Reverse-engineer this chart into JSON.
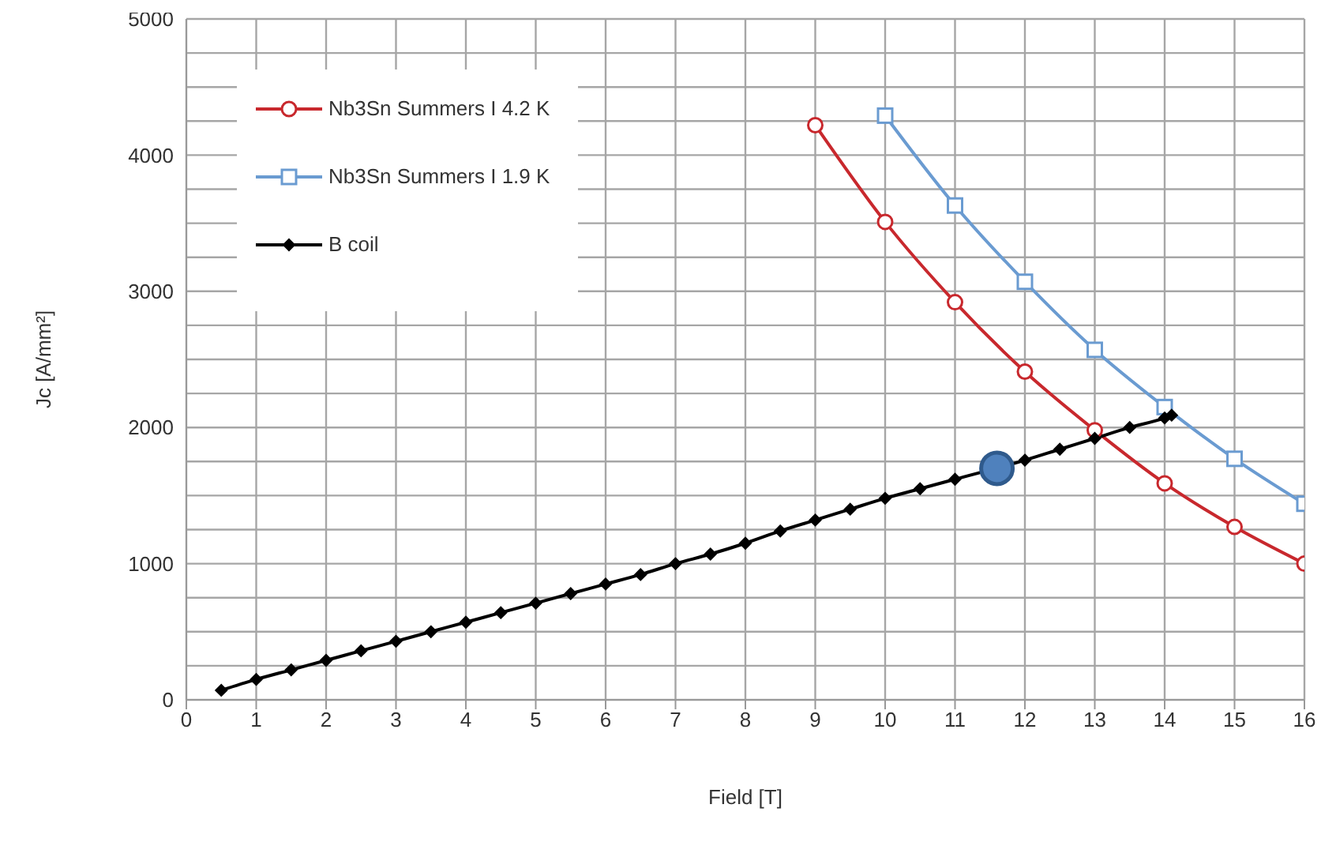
{
  "chart_data": {
    "type": "line",
    "xlabel": "Field [T]",
    "ylabel": "Jc [A/mm²]",
    "xlim": [
      0,
      16
    ],
    "xticks": [
      0,
      1,
      2,
      3,
      4,
      5,
      6,
      7,
      8,
      9,
      10,
      11,
      12,
      13,
      14,
      15,
      16
    ],
    "ylim": [
      0,
      5000
    ],
    "yticks": [
      0,
      {
        "value": 250,
        "label": null
      },
      {
        "value": 500,
        "label": null
      },
      {
        "value": 750,
        "label": null
      },
      1000,
      {
        "value": 1250,
        "label": null
      },
      {
        "value": 1500,
        "label": null
      },
      {
        "value": 1750,
        "label": null
      },
      2000,
      {
        "value": 2250,
        "label": null
      },
      {
        "value": 2500,
        "label": null
      },
      {
        "value": 2750,
        "label": null
      },
      3000,
      {
        "value": 3250,
        "label": null
      },
      {
        "value": 3500,
        "label": null
      },
      {
        "value": 3750,
        "label": null
      },
      4000,
      {
        "value": 4250,
        "label": null
      },
      {
        "value": 4500,
        "label": null
      },
      {
        "value": 4750,
        "label": null
      },
      5000
    ],
    "grid": true,
    "legend": "top left",
    "series": [
      {
        "name": "Nb3Sn Summers I 4.2 K",
        "color": "#c8282d",
        "marker": "circle",
        "x": [
          9,
          10,
          11,
          12,
          13,
          14,
          15,
          16
        ],
        "values": [
          4220,
          3510,
          2920,
          2410,
          1980,
          1590,
          1270,
          1000
        ]
      },
      {
        "name": "Nb3Sn Summers I 1.9 K",
        "color": "#6a9bd1",
        "marker": "square",
        "x": [
          10,
          11,
          12,
          13,
          14,
          15,
          16
        ],
        "values": [
          4290,
          3630,
          3070,
          2570,
          2150,
          1770,
          1440
        ]
      },
      {
        "name": "B coil",
        "color": "#000000",
        "marker": "diamond",
        "x": [
          0.5,
          1,
          1.5,
          2,
          2.5,
          3,
          3.5,
          4,
          4.5,
          5,
          5.5,
          6,
          6.5,
          7,
          7.5,
          8,
          8.5,
          9,
          9.5,
          10,
          10.5,
          11,
          11.5,
          12,
          12.5,
          13,
          13.5,
          14,
          14.1
        ],
        "values": [
          70,
          150,
          220,
          290,
          360,
          430,
          500,
          570,
          640,
          710,
          780,
          850,
          920,
          1000,
          1070,
          1150,
          1240,
          1320,
          1400,
          1480,
          1550,
          1620,
          null,
          1760,
          1840,
          1920,
          2000,
          2070,
          2090
        ]
      },
      {
        "type": "scatter",
        "color": "#4f81bd",
        "marker": "circle",
        "x": [
          11.6
        ],
        "values": [
          1700
        ]
      }
    ]
  }
}
